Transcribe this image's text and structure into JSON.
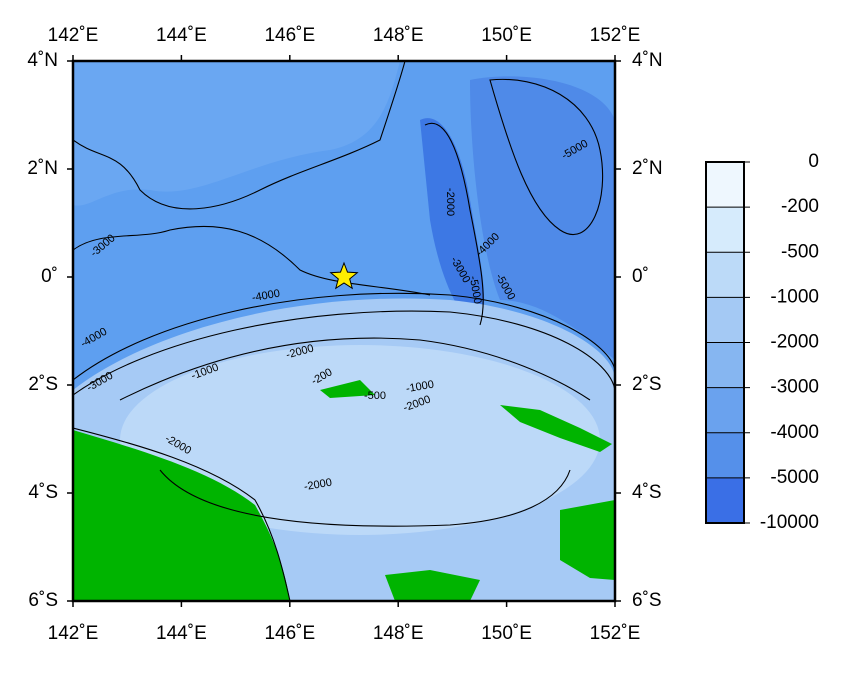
{
  "map": {
    "lon_ticks": [
      {
        "value": 142,
        "label": "142˚E"
      },
      {
        "value": 144,
        "label": "144˚E"
      },
      {
        "value": 146,
        "label": "146˚E"
      },
      {
        "value": 148,
        "label": "148˚E"
      },
      {
        "value": 150,
        "label": "150˚E"
      },
      {
        "value": 152,
        "label": "152˚E"
      }
    ],
    "lat_ticks": [
      {
        "value": 4,
        "label": "4˚N"
      },
      {
        "value": 2,
        "label": "2˚N"
      },
      {
        "value": 0,
        "label": "0˚"
      },
      {
        "value": -2,
        "label": "2˚S"
      },
      {
        "value": -4,
        "label": "4˚S"
      },
      {
        "value": -6,
        "label": "6˚S"
      }
    ],
    "lonlim": [
      142,
      152
    ],
    "latlim": [
      -6,
      4
    ],
    "marker": {
      "lon": 147,
      "lat": 0,
      "color": "#ffee00"
    },
    "contour_labels": [
      "-3000",
      "-4000",
      "-3000",
      "-4000",
      "-2000",
      "-1000",
      "-2000",
      "-200",
      "-500",
      "-1000",
      "-2000",
      "-2000",
      "-2000",
      "-3000",
      "-4000",
      "-5000",
      "-5000",
      "-5000"
    ]
  },
  "colorbar": {
    "ticks": [
      0,
      -200,
      -500,
      -1000,
      -2000,
      -3000,
      -4000,
      -5000,
      -10000
    ],
    "colors": [
      "#eef7fe",
      "#d6ebfc",
      "#bcdaf8",
      "#a4c9f4",
      "#86b6f1",
      "#6aa2ee",
      "#5590ea",
      "#3a6fe6"
    ]
  }
}
